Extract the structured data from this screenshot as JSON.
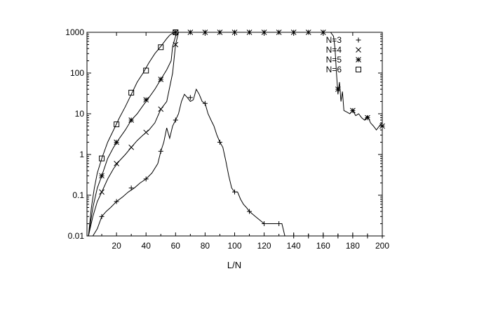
{
  "chart_data": {
    "type": "line",
    "title": "",
    "xlabel": "L/N",
    "ylabel": "",
    "xlim": [
      0,
      200
    ],
    "ylim": [
      0.01,
      1000
    ],
    "y_scale": "log",
    "grid": false,
    "legend_position": "top-right",
    "x_ticks": [
      20,
      40,
      60,
      80,
      100,
      120,
      140,
      160,
      180,
      200
    ],
    "x_tick_labels": [
      "20",
      "40",
      "60",
      "80",
      "100",
      "120",
      "140",
      "160",
      "180",
      "200"
    ],
    "y_ticks": [
      0.01,
      0.1,
      1,
      10,
      100,
      1000
    ],
    "y_tick_labels": [
      "0.01",
      "0.1",
      "1",
      "10",
      "100",
      "1000"
    ],
    "series": [
      {
        "name": "N=3",
        "marker": "plus",
        "x": [
          1,
          4,
          7,
          10,
          13,
          16,
          20,
          24,
          28,
          32,
          36,
          40,
          44,
          48,
          50,
          52,
          54,
          56,
          58,
          60,
          62,
          64,
          66,
          68,
          70,
          72,
          74,
          76,
          78,
          80,
          82,
          84,
          86,
          88,
          90,
          92,
          94,
          96,
          98,
          100,
          102,
          104,
          106,
          108,
          110,
          114,
          120,
          126,
          132,
          134,
          136,
          140,
          150,
          165,
          180,
          195,
          200
        ],
        "y": [
          0.01,
          0.01,
          0.015,
          0.03,
          0.04,
          0.05,
          0.07,
          0.09,
          0.12,
          0.15,
          0.2,
          0.25,
          0.35,
          0.6,
          1.2,
          2,
          4.5,
          2.5,
          5,
          7,
          10,
          20,
          30,
          25,
          20,
          22,
          40,
          30,
          20,
          18,
          10,
          7,
          5,
          3,
          2,
          1.5,
          0.7,
          0.3,
          0.15,
          0.12,
          0.12,
          0.08,
          0.06,
          0.05,
          0.04,
          0.03,
          0.02,
          0.02,
          0.02,
          0.01,
          0.01,
          0.01,
          0.01,
          0.01,
          0.01,
          0.01,
          0.01
        ],
        "marker_x": [
          10,
          20,
          30,
          40,
          50,
          60,
          70,
          80,
          90,
          100,
          110,
          120,
          130,
          140,
          150,
          160,
          170,
          180,
          190,
          200
        ],
        "marker_y": [
          0.03,
          0.07,
          0.15,
          0.25,
          1.2,
          7,
          25,
          18,
          2,
          0.12,
          0.04,
          0.02,
          0.02,
          0.01,
          0.01,
          0.01,
          0.01,
          0.01,
          0.01,
          0.01
        ]
      },
      {
        "name": "N=4",
        "marker": "cross",
        "x": [
          1,
          4,
          7,
          10,
          14,
          18,
          22,
          26,
          30,
          34,
          38,
          42,
          46,
          50,
          54,
          58,
          60,
          62
        ],
        "y": [
          0.01,
          0.03,
          0.07,
          0.12,
          0.25,
          0.45,
          0.7,
          1,
          1.5,
          2.2,
          3,
          4,
          6,
          13,
          20,
          100,
          500,
          1000
        ],
        "marker_x": [
          10,
          20,
          30,
          40,
          50,
          60
        ],
        "marker_y": [
          0.12,
          0.6,
          1.5,
          3.5,
          13,
          500
        ]
      },
      {
        "name": "N=5",
        "marker": "star",
        "x": [
          1,
          4,
          7,
          10,
          14,
          18,
          22,
          26,
          30,
          34,
          38,
          42,
          46,
          50,
          54,
          57,
          58,
          60,
          62,
          66,
          70,
          80,
          100,
          120,
          140,
          160,
          165,
          167,
          168,
          169,
          170,
          171,
          172,
          173,
          174,
          176,
          178,
          180,
          182,
          184,
          186,
          188,
          190,
          192,
          194,
          196,
          198,
          200
        ],
        "y": [
          0.01,
          0.05,
          0.15,
          0.3,
          0.8,
          1.5,
          2.5,
          4,
          7,
          10,
          16,
          25,
          40,
          70,
          120,
          200,
          450,
          800,
          1000,
          1000,
          1000,
          1000,
          1000,
          1000,
          1000,
          1000,
          1000,
          800,
          400,
          100,
          30,
          60,
          20,
          35,
          12,
          11,
          10,
          12,
          9,
          10,
          8,
          7,
          9,
          6,
          5,
          4,
          5,
          6
        ],
        "marker_x": [
          10,
          20,
          30,
          40,
          50,
          60,
          70,
          80,
          90,
          100,
          110,
          120,
          130,
          140,
          150,
          160,
          170,
          180,
          190,
          200
        ],
        "marker_y": [
          0.3,
          2,
          7,
          22,
          70,
          1000,
          1000,
          1000,
          1000,
          1000,
          1000,
          1000,
          1000,
          1000,
          1000,
          1000,
          40,
          12,
          8,
          5
        ]
      },
      {
        "name": "N=6",
        "marker": "box",
        "x": [
          1,
          3,
          5,
          7,
          10,
          14,
          18,
          22,
          26,
          30,
          34,
          38,
          42,
          46,
          50,
          54,
          56,
          58,
          60
        ],
        "y": [
          0.01,
          0.05,
          0.15,
          0.35,
          0.8,
          2,
          4,
          8,
          15,
          30,
          60,
          100,
          180,
          300,
          450,
          700,
          850,
          950,
          1000
        ],
        "marker_x": [
          10,
          20,
          30,
          40,
          50,
          60
        ],
        "marker_y": [
          0.8,
          5.5,
          33,
          115,
          430,
          1000
        ]
      }
    ]
  }
}
